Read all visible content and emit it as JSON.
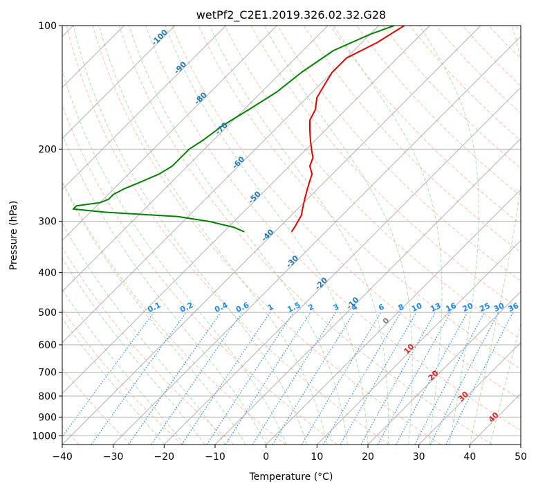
{
  "chart_data": {
    "type": "skew-t",
    "title": "wetPf2_C2E1.2019.326.02.32.G28",
    "xlabel": "Temperature (°C)",
    "ylabel": "Pressure (hPa)",
    "xlim": [
      -40,
      50
    ],
    "ylim": [
      1050,
      100
    ],
    "y_scale": "log",
    "grid": true,
    "x_ticks": [
      -40,
      -30,
      -20,
      -10,
      0,
      10,
      20,
      30,
      40,
      50
    ],
    "x_tick_labels": [
      "−40",
      "−30",
      "−20",
      "−10",
      "0",
      "10",
      "20",
      "30",
      "40",
      "50"
    ],
    "y_ticks": [
      100,
      200,
      300,
      400,
      500,
      600,
      700,
      800,
      900,
      1000
    ],
    "y_tick_labels": [
      "100",
      "200",
      "300",
      "400",
      "500",
      "600",
      "700",
      "800",
      "900",
      "1000"
    ],
    "series": [
      {
        "color": "#e00000",
        "points": [
          [
            100,
            -55
          ],
          [
            110,
            -57
          ],
          [
            120,
            -60
          ],
          [
            130,
            -60
          ],
          [
            140,
            -59
          ],
          [
            150,
            -58
          ],
          [
            160,
            -56
          ],
          [
            170,
            -55
          ],
          [
            180,
            -53
          ],
          [
            190,
            -51
          ],
          [
            200,
            -49
          ],
          [
            210,
            -47
          ],
          [
            220,
            -46
          ],
          [
            230,
            -44
          ],
          [
            240,
            -43
          ],
          [
            250,
            -42
          ],
          [
            260,
            -41
          ],
          [
            270,
            -40
          ],
          [
            280,
            -39
          ],
          [
            290,
            -38
          ],
          [
            300,
            -37.5
          ],
          [
            310,
            -37
          ],
          [
            318,
            -36.7
          ]
        ]
      },
      {
        "color": "#008000",
        "points": [
          [
            100,
            -57
          ],
          [
            105,
            -60
          ],
          [
            115,
            -64
          ],
          [
            130,
            -66
          ],
          [
            145,
            -67
          ],
          [
            160,
            -69
          ],
          [
            175,
            -71
          ],
          [
            190,
            -72
          ],
          [
            200,
            -73
          ],
          [
            210,
            -73
          ],
          [
            220,
            -73
          ],
          [
            230,
            -74
          ],
          [
            240,
            -76
          ],
          [
            250,
            -78
          ],
          [
            258,
            -79
          ],
          [
            265,
            -79
          ],
          [
            270,
            -80
          ],
          [
            275,
            -84
          ],
          [
            280,
            -84
          ],
          [
            285,
            -77
          ],
          [
            292,
            -62
          ],
          [
            300,
            -55
          ],
          [
            310,
            -49
          ],
          [
            318,
            -46
          ]
        ]
      }
    ],
    "isotherm_labels": [
      {
        "t": -100,
        "text": "-100"
      },
      {
        "t": -90,
        "text": "-90"
      },
      {
        "t": -80,
        "text": "-80"
      },
      {
        "t": -70,
        "text": "-70"
      },
      {
        "t": -60,
        "text": "-60"
      },
      {
        "t": -50,
        "text": "-50"
      },
      {
        "t": -40,
        "text": "-40"
      },
      {
        "t": -30,
        "text": "-30"
      },
      {
        "t": -20,
        "text": "-20"
      },
      {
        "t": -10,
        "text": "-10"
      }
    ],
    "warm_isotherm_labels": [
      {
        "t": 0,
        "text": "0",
        "color": "#808080"
      },
      {
        "t": 10,
        "text": "10",
        "color": "#d62728"
      },
      {
        "t": 20,
        "text": "20",
        "color": "#d62728"
      },
      {
        "t": 30,
        "text": "30",
        "color": "#d62728"
      },
      {
        "t": 40,
        "text": "40",
        "color": "#d62728"
      }
    ],
    "mixing_ratio_labels": [
      "0.1",
      "0.2",
      "0.4",
      "0.6",
      "1",
      "1.5",
      "2",
      "3",
      "4",
      "6",
      "8",
      "10",
      "13",
      "16",
      "20",
      "25",
      "30",
      "36"
    ],
    "colors": {
      "temperature": "#e00000",
      "dewpoint": "#008000",
      "dry_adiabat": "#ff8a65",
      "moist_adiabat": "#66bb6a",
      "mixing_ratio": "#1e88e5",
      "isotherm_label": "#1f77b4"
    }
  }
}
